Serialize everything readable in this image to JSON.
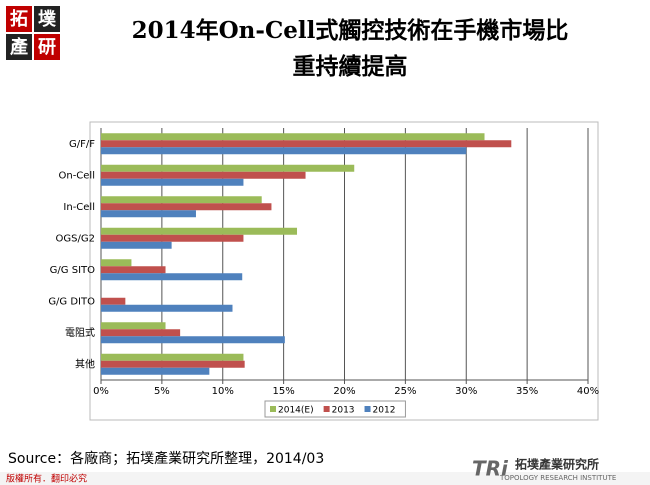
{
  "brand": {
    "logo": [
      "拓",
      "墣",
      "產",
      "研"
    ],
    "footer_logo": "拓墣產業研究所",
    "footer_logo_en": "TOPOLOGY RESEARCH INSTITUTE",
    "footer_mark": "TRi",
    "copyright": "版權所有．翻印必究"
  },
  "source": "Source：各廠商；拓墣產業研究所整理，2014/03",
  "chart_data": {
    "type": "hbar",
    "title": [
      "2014年On-Cell式觸控技術在手機市場比",
      "重持續提高"
    ],
    "categories": [
      "G/F/F",
      "On-Cell",
      "In-Cell",
      "OGS/G2",
      "G/G SITO",
      "G/G DITO",
      "電阻式",
      "其他"
    ],
    "series": [
      {
        "name": "2014(E)",
        "color": "#9bbb59",
        "values": [
          31.5,
          20.8,
          13.2,
          16.1,
          2.5,
          0,
          5.3,
          11.7
        ]
      },
      {
        "name": "2013",
        "color": "#c0504d",
        "values": [
          33.7,
          16.8,
          14.0,
          11.7,
          5.3,
          2.0,
          6.5,
          11.8
        ]
      },
      {
        "name": "2012",
        "color": "#4f81bd",
        "values": [
          30.0,
          11.7,
          7.8,
          5.8,
          11.6,
          10.8,
          15.1,
          8.9
        ]
      }
    ],
    "xlim": [
      0,
      40
    ],
    "xticks": [
      {
        "value": 0,
        "label": "0%"
      },
      {
        "value": 5,
        "label": "5%"
      },
      {
        "value": 10,
        "label": "10%"
      },
      {
        "value": 15,
        "label": "15%"
      },
      {
        "value": 20,
        "label": "20%"
      },
      {
        "value": 25,
        "label": "25%"
      },
      {
        "value": 30,
        "label": "30%"
      },
      {
        "value": 35,
        "label": "35%"
      },
      {
        "value": 40,
        "label": "40%"
      }
    ],
    "grid": true,
    "legend": "bottom"
  }
}
